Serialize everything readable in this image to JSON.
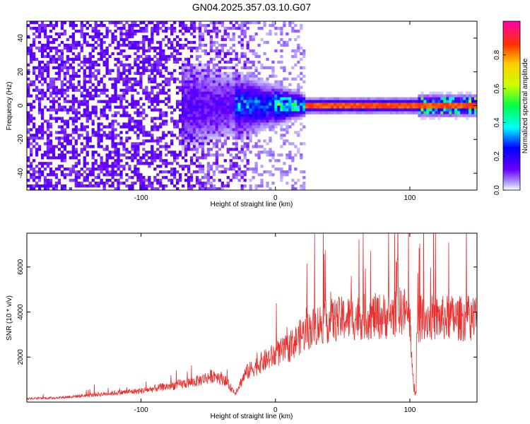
{
  "figure": {
    "title": "GN04.2025.357.03.10.G07"
  },
  "chart_data": [
    {
      "type": "heatmap",
      "xlabel": "Height of straight line (km)",
      "ylabel": "Frequency (Hz)",
      "xlim": [
        -185,
        150
      ],
      "ylim": [
        -50,
        50
      ],
      "x_ticks": [
        -100,
        0,
        100
      ],
      "y_ticks": [
        -40,
        -20,
        0,
        20,
        40
      ],
      "colorbar": {
        "label": "Normalized spectral amplitude",
        "range": [
          0,
          1
        ],
        "ticks": [
          0.0,
          0.2,
          0.4,
          0.6,
          0.8
        ],
        "colormap": "rainbow (violet-blue-cyan-green-yellow-red-magenta)"
      },
      "description_points": {
        "noise_region_x": [
          -185,
          22
        ],
        "band_center_frequency": 0,
        "band_strong_x_range": [
          25,
          150
        ],
        "band_peak_amplitude": 0.85
      }
    },
    {
      "type": "line",
      "xlabel": "Height of straight line (km)",
      "ylabel": "SNR (10 * v/v)",
      "xlim": [
        -185,
        150
      ],
      "ylim": [
        0,
        7500
      ],
      "x_ticks": [
        -100,
        0,
        100
      ],
      "y_ticks": [
        2000,
        4000,
        6000
      ],
      "color": "#e8302e",
      "x": [
        -185,
        -160,
        -140,
        -120,
        -100,
        -80,
        -60,
        -45,
        -38,
        -30,
        -22,
        -12,
        0,
        10,
        20,
        30,
        40,
        50,
        60,
        70,
        80,
        90,
        95,
        100,
        103,
        106,
        110,
        120,
        130,
        140,
        150
      ],
      "values": [
        150,
        200,
        300,
        400,
        500,
        700,
        900,
        1200,
        1000,
        400,
        1300,
        1700,
        2100,
        2400,
        3000,
        3400,
        3600,
        3700,
        3750,
        3800,
        3800,
        3950,
        4100,
        3700,
        400,
        3600,
        3800,
        3700,
        3750,
        3700,
        3800
      ]
    }
  ]
}
